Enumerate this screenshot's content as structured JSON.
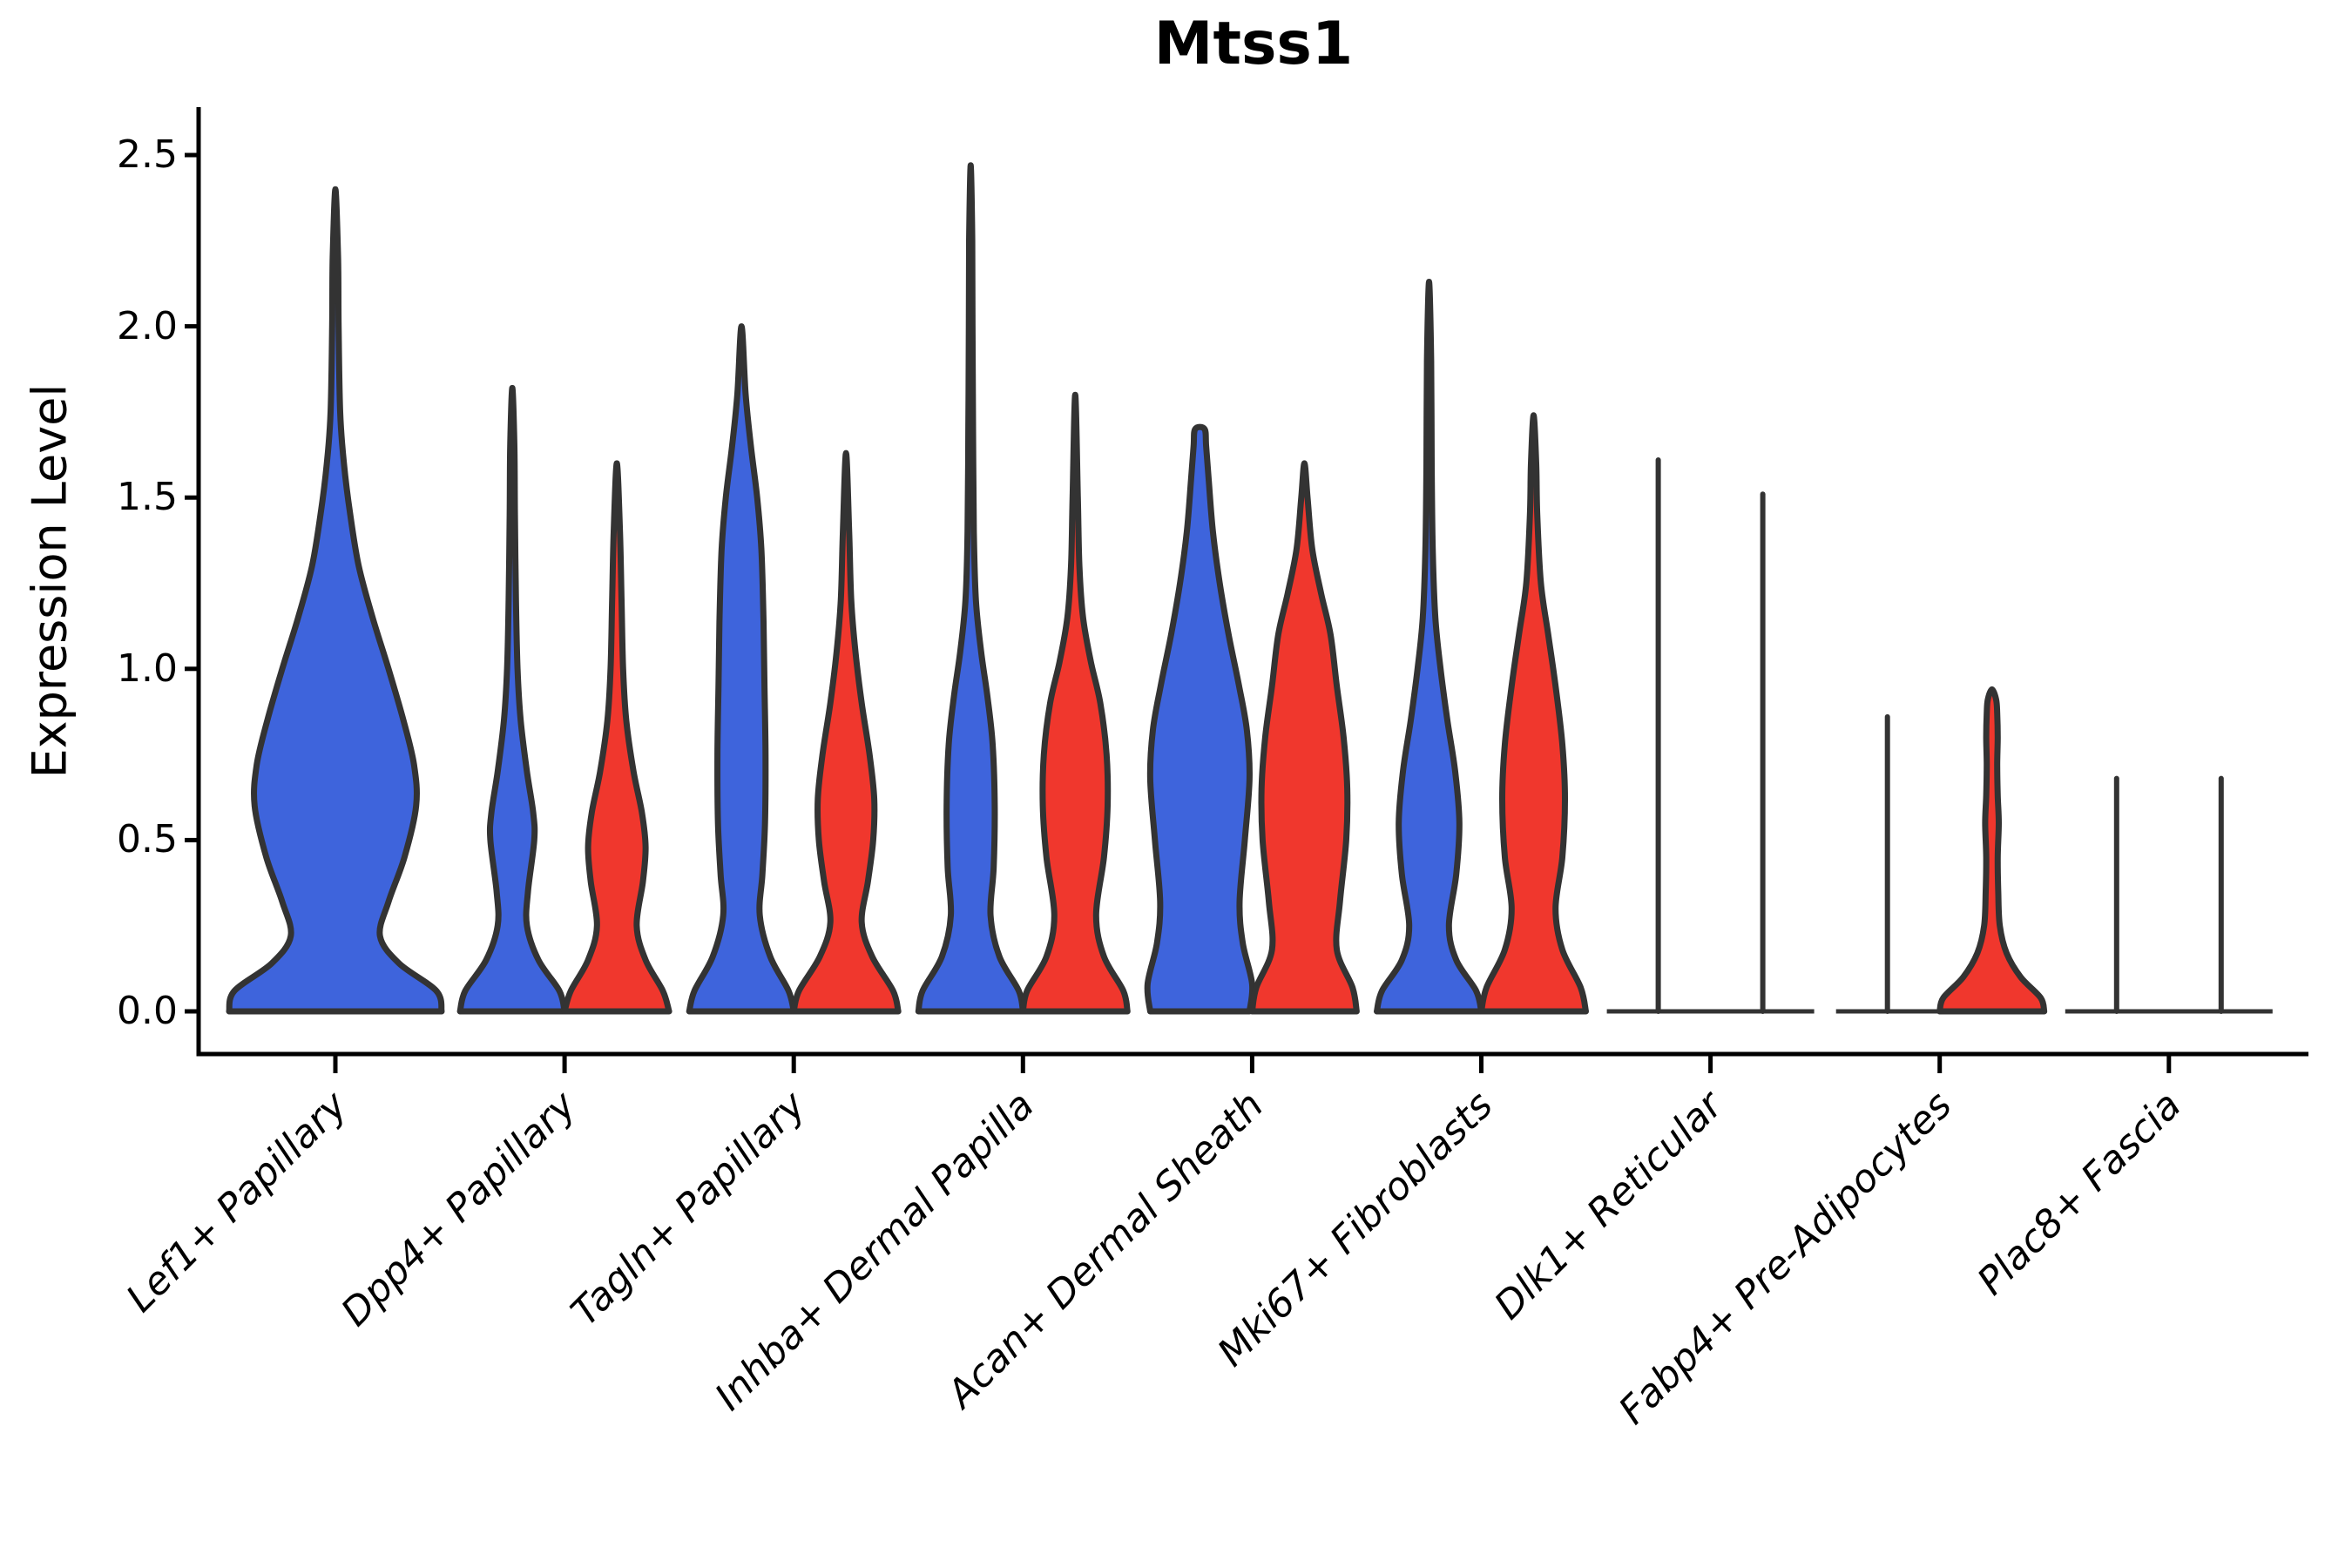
{
  "chart_data": {
    "type": "violin",
    "title": "Mtss1",
    "ylabel": "Expression Level",
    "xlabel": "",
    "categories": [
      "Lef1+ Papillary",
      "Dpp4+ Papillary",
      "Tagln+ Papillary",
      "Inhba+ Dermal Papilla",
      "Acan+ Dermal Sheath",
      "Mki67+ Fibroblasts",
      "Dlk1+ Reticular",
      "Fabp4+ Pre-Adipocytes",
      "Plac8+ Fascia"
    ],
    "yticks": [
      0.0,
      0.5,
      1.0,
      1.5,
      2.0,
      2.5
    ],
    "ytick_labels": [
      "0.0",
      "0.5",
      "1.0",
      "1.5",
      "2.0",
      "2.5"
    ],
    "ylim": [
      0,
      2.64
    ],
    "grid": false,
    "legend": "none",
    "background_color": "#ffffff",
    "outline_color": "#333333",
    "series": [
      {
        "key": "blue",
        "color": "#3E64DC"
      },
      {
        "key": "red",
        "color": "#F0372D"
      }
    ],
    "groups": [
      {
        "category": "Lef1+ Papillary",
        "violins": [
          {
            "color": "blue",
            "side": "center",
            "shape": "violin",
            "max": 2.4,
            "profile": [
              [
                0,
                1.0
              ],
              [
                0.06,
                0.95
              ],
              [
                0.14,
                0.6
              ],
              [
                0.22,
                0.42
              ],
              [
                0.32,
                0.5
              ],
              [
                0.45,
                0.65
              ],
              [
                0.6,
                0.76
              ],
              [
                0.72,
                0.74
              ],
              [
                0.85,
                0.64
              ],
              [
                1.0,
                0.5
              ],
              [
                1.15,
                0.35
              ],
              [
                1.3,
                0.22
              ],
              [
                1.45,
                0.14
              ],
              [
                1.6,
                0.08
              ],
              [
                1.75,
                0.045
              ],
              [
                2.0,
                0.03
              ],
              [
                2.2,
                0.025
              ],
              [
                2.4,
                0.0
              ]
            ]
          }
        ]
      },
      {
        "category": "Dpp4+ Papillary",
        "violins": [
          {
            "color": "blue",
            "side": "left",
            "shape": "violin",
            "max": 1.82,
            "profile": [
              [
                0,
                1.0
              ],
              [
                0.06,
                0.9
              ],
              [
                0.15,
                0.5
              ],
              [
                0.25,
                0.28
              ],
              [
                0.35,
                0.3
              ],
              [
                0.5,
                0.42
              ],
              [
                0.58,
                0.4
              ],
              [
                0.7,
                0.28
              ],
              [
                0.85,
                0.16
              ],
              [
                1.0,
                0.1
              ],
              [
                1.2,
                0.07
              ],
              [
                1.45,
                0.05
              ],
              [
                1.65,
                0.04
              ],
              [
                1.82,
                0.0
              ]
            ]
          },
          {
            "color": "red",
            "side": "right",
            "shape": "violin",
            "max": 1.6,
            "profile": [
              [
                0,
                1.0
              ],
              [
                0.06,
                0.88
              ],
              [
                0.15,
                0.55
              ],
              [
                0.25,
                0.38
              ],
              [
                0.38,
                0.5
              ],
              [
                0.48,
                0.55
              ],
              [
                0.58,
                0.48
              ],
              [
                0.7,
                0.32
              ],
              [
                0.85,
                0.18
              ],
              [
                1.0,
                0.12
              ],
              [
                1.2,
                0.09
              ],
              [
                1.4,
                0.06
              ],
              [
                1.6,
                0.0
              ]
            ]
          }
        ]
      },
      {
        "category": "Tagln+ Papillary",
        "violins": [
          {
            "color": "blue",
            "side": "left",
            "shape": "violin",
            "max": 2.0,
            "profile": [
              [
                0,
                1.0
              ],
              [
                0.06,
                0.9
              ],
              [
                0.16,
                0.55
              ],
              [
                0.28,
                0.35
              ],
              [
                0.4,
                0.4
              ],
              [
                0.55,
                0.45
              ],
              [
                0.75,
                0.46
              ],
              [
                0.95,
                0.44
              ],
              [
                1.15,
                0.42
              ],
              [
                1.35,
                0.38
              ],
              [
                1.5,
                0.3
              ],
              [
                1.65,
                0.18
              ],
              [
                1.8,
                0.08
              ],
              [
                2.0,
                0.0
              ]
            ]
          },
          {
            "color": "red",
            "side": "right",
            "shape": "violin",
            "max": 1.63,
            "profile": [
              [
                0,
                1.0
              ],
              [
                0.06,
                0.9
              ],
              [
                0.16,
                0.5
              ],
              [
                0.26,
                0.3
              ],
              [
                0.38,
                0.42
              ],
              [
                0.5,
                0.52
              ],
              [
                0.62,
                0.54
              ],
              [
                0.75,
                0.45
              ],
              [
                0.9,
                0.3
              ],
              [
                1.05,
                0.18
              ],
              [
                1.2,
                0.1
              ],
              [
                1.4,
                0.06
              ],
              [
                1.63,
                0.0
              ]
            ]
          }
        ]
      },
      {
        "category": "Inhba+ Dermal Papilla",
        "violins": [
          {
            "color": "blue",
            "side": "left",
            "shape": "violin",
            "max": 2.47,
            "profile": [
              [
                0,
                1.0
              ],
              [
                0.06,
                0.92
              ],
              [
                0.16,
                0.55
              ],
              [
                0.28,
                0.38
              ],
              [
                0.42,
                0.44
              ],
              [
                0.6,
                0.46
              ],
              [
                0.78,
                0.42
              ],
              [
                0.92,
                0.32
              ],
              [
                1.05,
                0.2
              ],
              [
                1.2,
                0.1
              ],
              [
                1.4,
                0.06
              ],
              [
                1.7,
                0.045
              ],
              [
                2.0,
                0.035
              ],
              [
                2.25,
                0.03
              ],
              [
                2.47,
                0.0
              ]
            ]
          },
          {
            "color": "red",
            "side": "right",
            "shape": "violin",
            "max": 1.8,
            "profile": [
              [
                0,
                1.0
              ],
              [
                0.06,
                0.92
              ],
              [
                0.16,
                0.55
              ],
              [
                0.28,
                0.4
              ],
              [
                0.45,
                0.55
              ],
              [
                0.6,
                0.62
              ],
              [
                0.75,
                0.6
              ],
              [
                0.9,
                0.48
              ],
              [
                1.02,
                0.3
              ],
              [
                1.15,
                0.15
              ],
              [
                1.3,
                0.08
              ],
              [
                1.5,
                0.05
              ],
              [
                1.8,
                0.0
              ]
            ]
          }
        ]
      },
      {
        "category": "Acan+ Dermal Sheath",
        "violins": [
          {
            "color": "blue",
            "side": "left",
            "shape": "violin",
            "max": 1.7,
            "flat_top": true,
            "profile": [
              [
                0,
                0.95
              ],
              [
                0.08,
                1.0
              ],
              [
                0.2,
                0.82
              ],
              [
                0.32,
                0.76
              ],
              [
                0.5,
                0.86
              ],
              [
                0.68,
                0.95
              ],
              [
                0.82,
                0.9
              ],
              [
                0.95,
                0.75
              ],
              [
                1.1,
                0.55
              ],
              [
                1.25,
                0.38
              ],
              [
                1.4,
                0.25
              ],
              [
                1.55,
                0.17
              ],
              [
                1.65,
                0.12
              ],
              [
                1.7,
                0.09
              ]
            ]
          },
          {
            "color": "red",
            "side": "right",
            "shape": "violin",
            "max": 1.6,
            "profile": [
              [
                0,
                1.0
              ],
              [
                0.07,
                0.92
              ],
              [
                0.18,
                0.62
              ],
              [
                0.32,
                0.68
              ],
              [
                0.5,
                0.8
              ],
              [
                0.65,
                0.82
              ],
              [
                0.8,
                0.75
              ],
              [
                0.95,
                0.62
              ],
              [
                1.1,
                0.5
              ],
              [
                1.22,
                0.32
              ],
              [
                1.35,
                0.15
              ],
              [
                1.5,
                0.06
              ],
              [
                1.6,
                0.0
              ]
            ]
          }
        ]
      },
      {
        "category": "Mki67+ Fibroblasts",
        "violins": [
          {
            "color": "blue",
            "side": "left",
            "shape": "violin",
            "max": 2.13,
            "profile": [
              [
                0,
                1.0
              ],
              [
                0.06,
                0.9
              ],
              [
                0.15,
                0.52
              ],
              [
                0.25,
                0.38
              ],
              [
                0.4,
                0.52
              ],
              [
                0.55,
                0.58
              ],
              [
                0.7,
                0.5
              ],
              [
                0.85,
                0.35
              ],
              [
                1.0,
                0.22
              ],
              [
                1.15,
                0.12
              ],
              [
                1.35,
                0.07
              ],
              [
                1.6,
                0.05
              ],
              [
                1.9,
                0.04
              ],
              [
                2.13,
                0.0
              ]
            ]
          },
          {
            "color": "red",
            "side": "right",
            "shape": "violin",
            "max": 1.74,
            "profile": [
              [
                0,
                1.0
              ],
              [
                0.07,
                0.9
              ],
              [
                0.18,
                0.55
              ],
              [
                0.3,
                0.42
              ],
              [
                0.45,
                0.55
              ],
              [
                0.62,
                0.6
              ],
              [
                0.78,
                0.55
              ],
              [
                0.95,
                0.42
              ],
              [
                1.1,
                0.28
              ],
              [
                1.25,
                0.14
              ],
              [
                1.45,
                0.07
              ],
              [
                1.6,
                0.05
              ],
              [
                1.74,
                0.0
              ]
            ]
          }
        ]
      },
      {
        "category": "Dlk1+ Reticular",
        "baseline": true,
        "violins": [
          {
            "color": "blue",
            "side": "left",
            "shape": "line",
            "max": 1.61
          },
          {
            "color": "red",
            "side": "right",
            "shape": "line",
            "max": 1.51
          }
        ]
      },
      {
        "category": "Fabp4+ Pre-Adipocytes",
        "baseline": true,
        "violins": [
          {
            "color": "blue",
            "side": "left",
            "shape": "line",
            "max": 0.86
          },
          {
            "color": "red",
            "side": "right",
            "shape": "violin",
            "max": 0.94,
            "profile": [
              [
                0,
                1.0
              ],
              [
                0.04,
                0.93
              ],
              [
                0.1,
                0.55
              ],
              [
                0.17,
                0.28
              ],
              [
                0.25,
                0.15
              ],
              [
                0.35,
                0.12
              ],
              [
                0.45,
                0.11
              ],
              [
                0.55,
                0.13
              ],
              [
                0.63,
                0.11
              ],
              [
                0.72,
                0.1
              ],
              [
                0.8,
                0.11
              ],
              [
                0.87,
                0.1
              ],
              [
                0.91,
                0.08
              ],
              [
                0.94,
                0.0
              ]
            ]
          }
        ]
      },
      {
        "category": "Plac8+ Fascia",
        "baseline": true,
        "violins": [
          {
            "color": "blue",
            "side": "left",
            "shape": "line",
            "max": 0.68
          },
          {
            "color": "red",
            "side": "right",
            "shape": "line",
            "max": 0.68
          }
        ]
      }
    ]
  }
}
